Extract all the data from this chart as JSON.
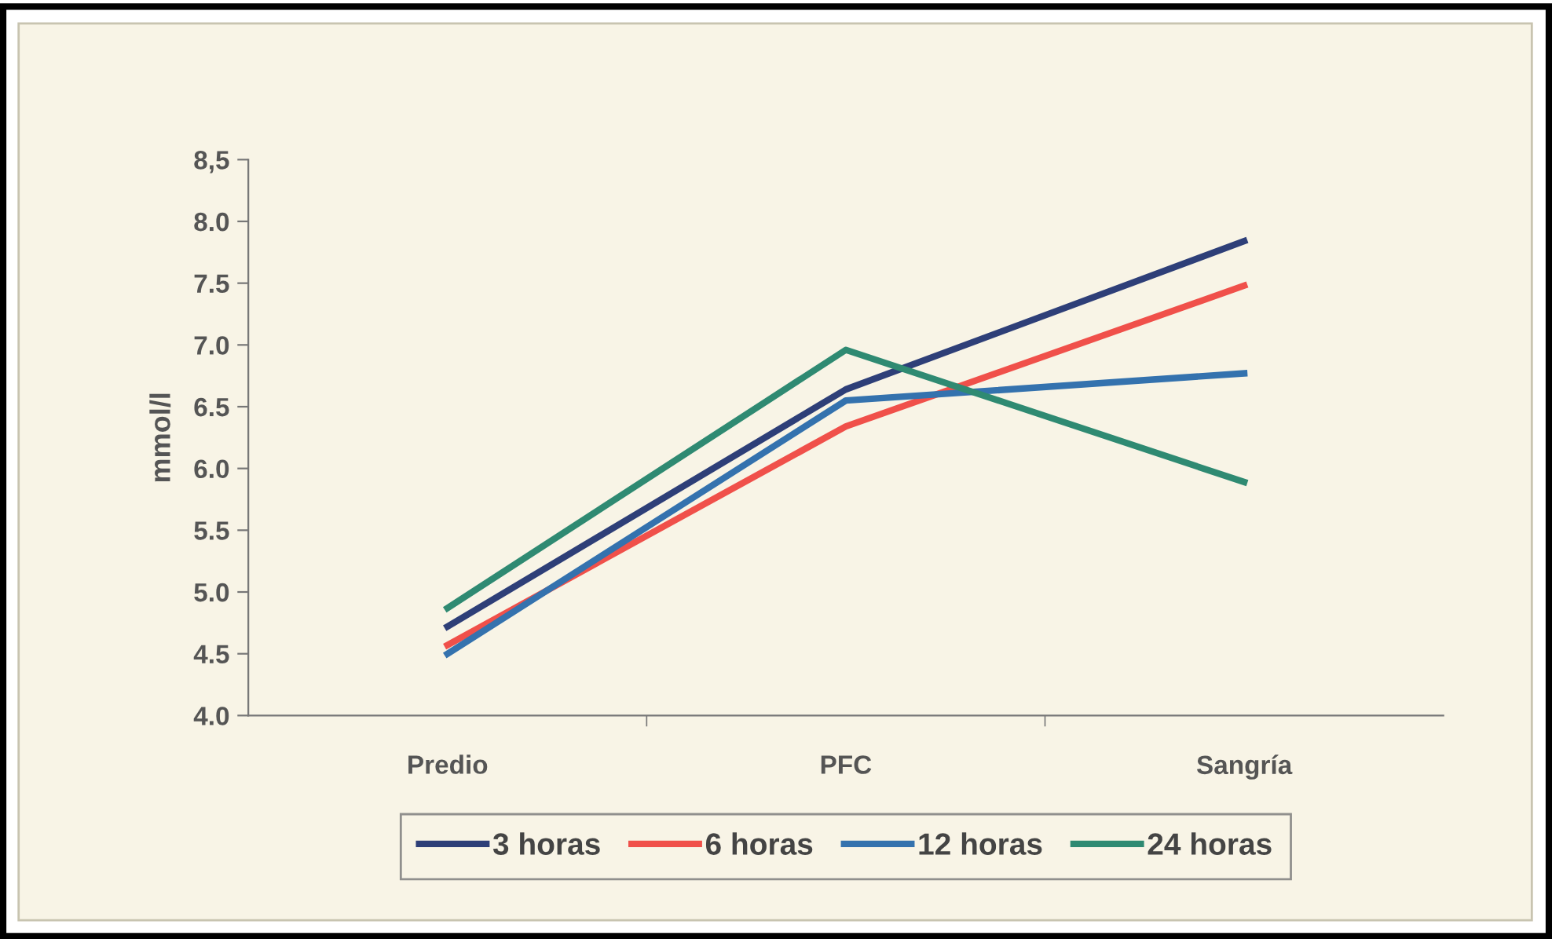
{
  "chart_data": {
    "type": "line",
    "ylabel": "mmol/l",
    "categories": [
      "Predio",
      "PFC",
      "Sangría"
    ],
    "series": [
      {
        "name": "3 horas",
        "color": "#2e3f78",
        "values": [
          4.72,
          6.64,
          7.84
        ]
      },
      {
        "name": "6 horas",
        "color": "#f0504a",
        "values": [
          4.57,
          6.34,
          7.48
        ]
      },
      {
        "name": "12 horas",
        "color": "#3472ae",
        "values": [
          4.5,
          6.55,
          6.77
        ]
      },
      {
        "name": "24 horas",
        "color": "#2f8a72",
        "values": [
          4.87,
          6.96,
          5.89
        ]
      }
    ],
    "ylim": [
      4.0,
      8.5
    ],
    "yticks": [
      {
        "value": 4.0,
        "label": "4.0"
      },
      {
        "value": 4.5,
        "label": "4.5"
      },
      {
        "value": 5.0,
        "label": "5.0"
      },
      {
        "value": 5.5,
        "label": "5.5"
      },
      {
        "value": 6.0,
        "label": "6.0"
      },
      {
        "value": 6.5,
        "label": "6.5"
      },
      {
        "value": 7.0,
        "label": "7.0"
      },
      {
        "value": 7.5,
        "label": "7.5"
      },
      {
        "value": 8.0,
        "label": "8.0"
      },
      {
        "value": 8.5,
        "label": "8,5"
      }
    ],
    "legend": "bottom",
    "grid": false,
    "marker": "none",
    "line_style": "solid"
  }
}
